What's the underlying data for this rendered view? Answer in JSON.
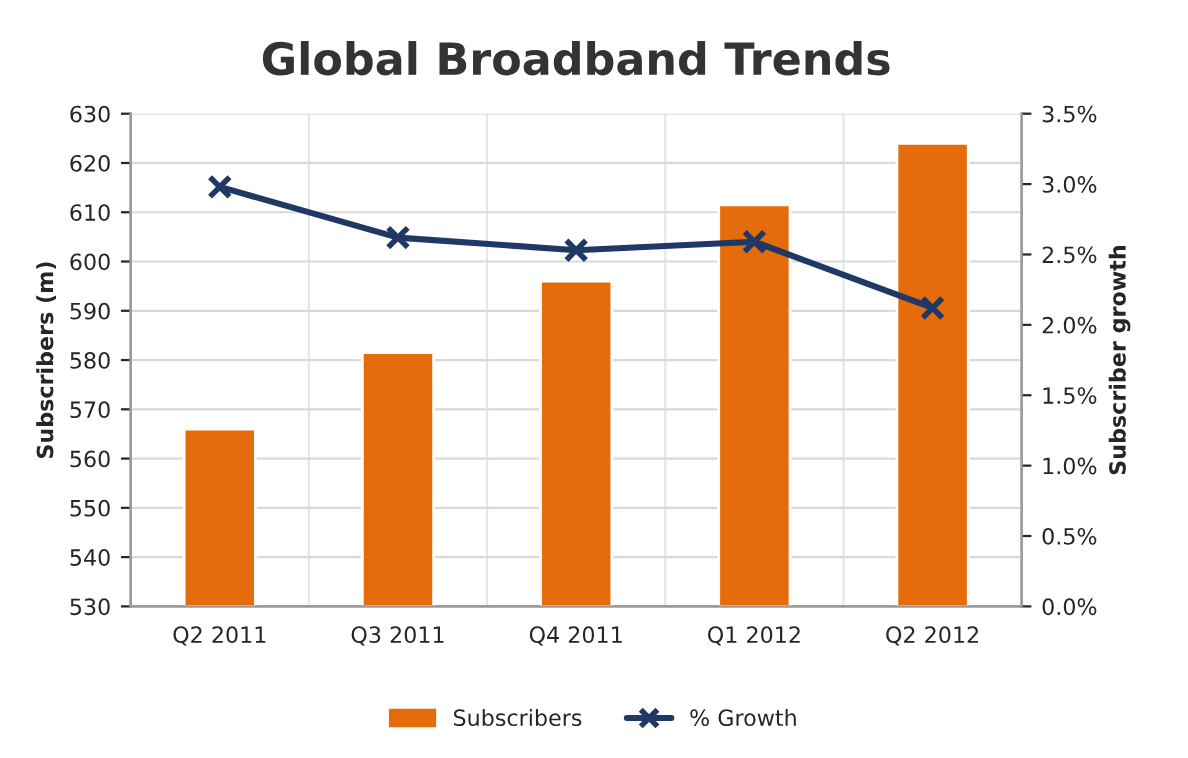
{
  "chart_data": {
    "type": "bar",
    "title": "Global Broadband Trends",
    "ylabel": "Subscribers (m)",
    "y2label": "Subscriber growth",
    "categories": [
      "Q2 2011",
      "Q3 2011",
      "Q4 2011",
      "Q1 2012",
      "Q2 2012"
    ],
    "series": [
      {
        "name": "Subscribers",
        "color": "#e46c0a",
        "values": [
          566,
          581.5,
          596,
          611.5,
          624
        ]
      },
      {
        "name": "% Growth",
        "type": "line",
        "axis": "y2",
        "color": "#1f3864",
        "marker": "cross",
        "values": [
          2.98,
          2.62,
          2.53,
          2.59,
          2.12
        ]
      }
    ],
    "ylim": [
      530,
      630
    ],
    "yticks": [
      530,
      540,
      550,
      560,
      570,
      580,
      590,
      600,
      610,
      620,
      630
    ],
    "y2lim": [
      0,
      3.5
    ],
    "y2ticks": [
      {
        "value": 0,
        "label": "0.0%"
      },
      {
        "value": 0.5,
        "label": "0.5%"
      },
      {
        "value": 1,
        "label": "1.0%"
      },
      {
        "value": 1.5,
        "label": "1.5%"
      },
      {
        "value": 2,
        "label": "2.0%"
      },
      {
        "value": 2.5,
        "label": "2.5%"
      },
      {
        "value": 3,
        "label": "3.0%"
      },
      {
        "value": 3.5,
        "label": "3.5%"
      }
    ],
    "grid": true,
    "legend": "bottom"
  }
}
